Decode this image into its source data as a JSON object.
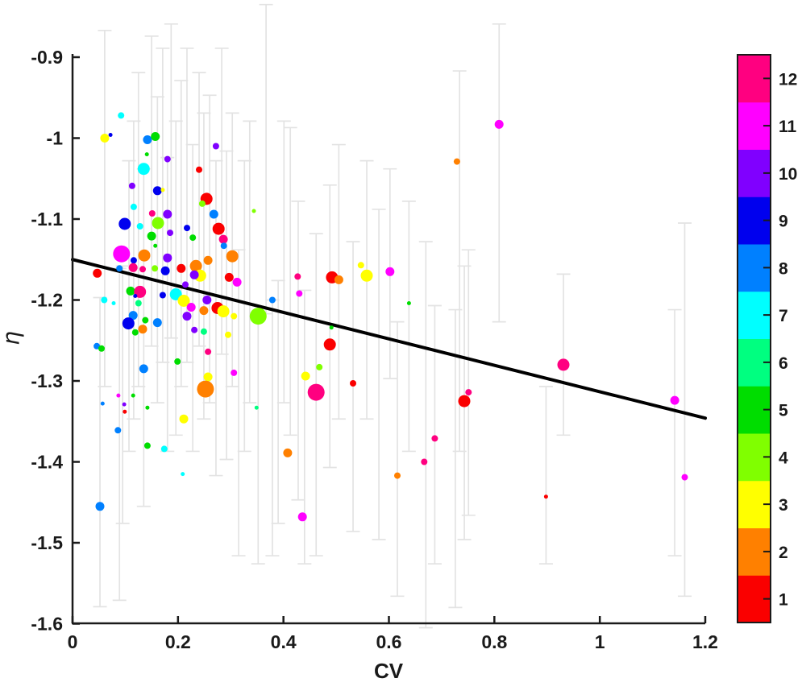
{
  "chart_data": {
    "type": "scatter",
    "title": "",
    "xlabel": "CV",
    "ylabel": "η",
    "xlim": [
      0,
      1.2
    ],
    "ylim": [
      -1.6,
      -0.9
    ],
    "x_ticks": [
      0,
      0.2,
      0.4,
      0.6,
      0.8,
      1,
      1.2
    ],
    "x_tick_labels": [
      "0",
      "0.2",
      "0.4",
      "0.6",
      "0.8",
      "1",
      "1.2"
    ],
    "y_ticks": [
      -0.9,
      -1,
      -1.1,
      -1.2,
      -1.3,
      -1.4,
      -1.5,
      -1.6
    ],
    "y_tick_labels": [
      "-0.9",
      "-1",
      "-1.1",
      "-1.2",
      "-1.3",
      "-1.4",
      "-1.5",
      "-1.6"
    ],
    "grid": false,
    "legend": null,
    "fit_line": {
      "x": [
        0,
        1.2
      ],
      "y": [
        -1.15,
        -1.346
      ],
      "color": "#000000",
      "width": 4
    },
    "colorbar": {
      "position": "right",
      "ticks": [
        1,
        2,
        3,
        4,
        5,
        6,
        7,
        8,
        9,
        10,
        11,
        12
      ],
      "colors": [
        "#FA0000",
        "#FF8000",
        "#FFFF00",
        "#80FF00",
        "#00DD00",
        "#00FF80",
        "#00FFFF",
        "#0080FF",
        "#0000EE",
        "#8000FF",
        "#FF00FF",
        "#FF0080"
      ]
    },
    "error_bar_color": "#E3E3E3",
    "points_format": "[cv, eta, color_index_1to12, radius_px]",
    "points": [
      [
        0.092,
        -0.972,
        7,
        4
      ],
      [
        0.061,
        -1.0,
        3,
        5.5
      ],
      [
        0.072,
        -0.996,
        9,
        2.5
      ],
      [
        0.142,
        -1.002,
        8,
        5.5
      ],
      [
        0.157,
        -0.998,
        5,
        5.5
      ],
      [
        0.272,
        -1.01,
        10,
        4
      ],
      [
        0.141,
        -1.02,
        5,
        2.5
      ],
      [
        0.18,
        -1.026,
        10,
        4
      ],
      [
        0.135,
        -1.038,
        7,
        7.5
      ],
      [
        0.24,
        -1.039,
        1,
        4
      ],
      [
        0.113,
        -1.059,
        10,
        4
      ],
      [
        0.161,
        -1.065,
        9,
        5.5
      ],
      [
        0.171,
        -1.064,
        3,
        2.5
      ],
      [
        0.254,
        -1.075,
        1,
        7.5
      ],
      [
        0.246,
        -1.081,
        4,
        4
      ],
      [
        0.116,
        -1.085,
        7,
        4
      ],
      [
        0.151,
        -1.093,
        12,
        4
      ],
      [
        0.18,
        -1.094,
        10,
        5.5
      ],
      [
        0.268,
        -1.094,
        8,
        5.5
      ],
      [
        0.099,
        -1.106,
        9,
        7.5
      ],
      [
        0.162,
        -1.105,
        4,
        7.5
      ],
      [
        0.217,
        -1.111,
        9,
        4
      ],
      [
        0.277,
        -1.112,
        1,
        7.5
      ],
      [
        0.185,
        -1.117,
        10,
        4
      ],
      [
        0.15,
        -1.121,
        5,
        5.5
      ],
      [
        0.228,
        -1.123,
        5,
        4
      ],
      [
        0.286,
        -1.125,
        12,
        5.5
      ],
      [
        0.344,
        -1.09,
        4,
        2.5
      ],
      [
        0.729,
        -1.029,
        2,
        4
      ],
      [
        0.809,
        -0.983,
        11,
        5.5
      ],
      [
        0.093,
        -1.143,
        11,
        10.5
      ],
      [
        0.136,
        -1.145,
        2,
        7.5
      ],
      [
        0.116,
        -1.151,
        9,
        4
      ],
      [
        0.089,
        -1.161,
        8,
        4
      ],
      [
        0.047,
        -1.167,
        1,
        5.5
      ],
      [
        0.115,
        -1.16,
        12,
        5.5
      ],
      [
        0.133,
        -1.162,
        12,
        4
      ],
      [
        0.156,
        -1.161,
        4,
        4
      ],
      [
        0.176,
        -1.164,
        9,
        5.5
      ],
      [
        0.206,
        -1.161,
        1,
        5.5
      ],
      [
        0.234,
        -1.158,
        2,
        7.5
      ],
      [
        0.242,
        -1.17,
        3,
        7.5
      ],
      [
        0.231,
        -1.169,
        10,
        5.5
      ],
      [
        0.257,
        -1.151,
        2,
        5.5
      ],
      [
        0.297,
        -1.172,
        1,
        5.5
      ],
      [
        0.312,
        -1.178,
        11,
        5.5
      ],
      [
        0.11,
        -1.189,
        5,
        5.5
      ],
      [
        0.128,
        -1.19,
        12,
        7.5
      ],
      [
        0.119,
        -1.195,
        9,
        2.5
      ],
      [
        0.125,
        -1.204,
        6,
        4
      ],
      [
        0.06,
        -1.2,
        7,
        4
      ],
      [
        0.078,
        -1.204,
        7,
        2.5
      ],
      [
        0.171,
        -1.194,
        9,
        4
      ],
      [
        0.196,
        -1.193,
        7,
        7.5
      ],
      [
        0.211,
        -1.201,
        3,
        7.5
      ],
      [
        0.255,
        -1.2,
        10,
        5.5
      ],
      [
        0.225,
        -1.209,
        11,
        5.5
      ],
      [
        0.275,
        -1.21,
        1,
        7.5
      ],
      [
        0.286,
        -1.214,
        3,
        7.5
      ],
      [
        0.249,
        -1.213,
        2,
        5.5
      ],
      [
        0.306,
        -1.22,
        3,
        4
      ],
      [
        0.115,
        -1.219,
        8,
        5.5
      ],
      [
        0.217,
        -1.22,
        10,
        5.5
      ],
      [
        0.138,
        -1.225,
        5,
        4
      ],
      [
        0.106,
        -1.229,
        9,
        7.5
      ],
      [
        0.161,
        -1.228,
        8,
        5.5
      ],
      [
        0.231,
        -1.237,
        10,
        4
      ],
      [
        0.249,
        -1.239,
        6,
        4
      ],
      [
        0.133,
        -1.236,
        2,
        5.5
      ],
      [
        0.119,
        -1.24,
        5,
        4
      ],
      [
        0.295,
        -1.243,
        3,
        4
      ],
      [
        0.352,
        -1.22,
        4,
        10.5
      ],
      [
        0.491,
        -1.234,
        5,
        2.5
      ],
      [
        0.488,
        -1.255,
        1,
        7.5
      ],
      [
        0.468,
        -1.283,
        4,
        4
      ],
      [
        0.442,
        -1.294,
        3,
        5.5
      ],
      [
        0.462,
        -1.314,
        12,
        10.5
      ],
      [
        0.532,
        -1.303,
        1,
        4
      ],
      [
        0.349,
        -1.333,
        6,
        2.5
      ],
      [
        0.046,
        -1.257,
        8,
        4
      ],
      [
        0.055,
        -1.26,
        5,
        4
      ],
      [
        0.257,
        -1.264,
        12,
        4
      ],
      [
        0.199,
        -1.276,
        5,
        4
      ],
      [
        0.135,
        -1.285,
        8,
        5.5
      ],
      [
        0.306,
        -1.29,
        11,
        4
      ],
      [
        0.257,
        -1.295,
        3,
        5.5
      ],
      [
        0.252,
        -1.31,
        2,
        10.5
      ],
      [
        0.087,
        -1.318,
        11,
        2.5
      ],
      [
        0.115,
        -1.318,
        5,
        2.5
      ],
      [
        0.057,
        -1.328,
        8,
        2.5
      ],
      [
        0.098,
        -1.329,
        10,
        2.5
      ],
      [
        0.099,
        -1.338,
        1,
        2.5
      ],
      [
        0.142,
        -1.333,
        5,
        2.5
      ],
      [
        0.211,
        -1.347,
        3,
        5.5
      ],
      [
        0.086,
        -1.361,
        8,
        4
      ],
      [
        0.142,
        -1.38,
        5,
        4
      ],
      [
        0.174,
        -1.384,
        7,
        4
      ],
      [
        0.209,
        -1.415,
        7,
        2.5
      ],
      [
        0.408,
        -1.389,
        2,
        5.5
      ],
      [
        0.436,
        -1.468,
        11,
        5.5
      ],
      [
        0.687,
        -1.371,
        12,
        4
      ],
      [
        0.667,
        -1.4,
        12,
        4
      ],
      [
        0.616,
        -1.417,
        2,
        4
      ],
      [
        0.743,
        -1.325,
        1,
        7.5
      ],
      [
        0.751,
        -1.314,
        12,
        4
      ],
      [
        0.931,
        -1.28,
        12,
        7.5
      ],
      [
        1.142,
        -1.324,
        11,
        5.5
      ],
      [
        1.161,
        -1.419,
        11,
        4
      ],
      [
        0.898,
        -1.443,
        1,
        2.5
      ],
      [
        0.052,
        -1.455,
        8,
        5.5
      ],
      [
        0.427,
        -1.171,
        12,
        4
      ],
      [
        0.492,
        -1.172,
        1,
        7.5
      ],
      [
        0.505,
        -1.175,
        2,
        5.5
      ],
      [
        0.547,
        -1.157,
        3,
        4
      ],
      [
        0.558,
        -1.17,
        3,
        7.5
      ],
      [
        0.602,
        -1.165,
        11,
        5.5
      ],
      [
        0.43,
        -1.192,
        11,
        4
      ],
      [
        0.379,
        -1.2,
        8,
        4
      ],
      [
        0.638,
        -1.204,
        5,
        2.5
      ],
      [
        0.128,
        -1.109,
        7,
        4
      ],
      [
        0.303,
        -1.146,
        2,
        7.5
      ],
      [
        0.287,
        -1.133,
        8,
        4
      ],
      [
        0.18,
        -1.148,
        10,
        5.5
      ],
      [
        0.15,
        -1.124,
        5,
        2.5
      ],
      [
        0.157,
        -1.133,
        5,
        2.5
      ],
      [
        0.214,
        -1.181,
        10,
        4
      ]
    ],
    "error_bars_format": "[cv, eta_low, eta_high]",
    "error_bars": [
      [
        0.052,
        -1.579,
        -1.197
      ],
      [
        0.061,
        -1.307,
        -0.867
      ],
      [
        0.089,
        -1.571,
        -1.161
      ],
      [
        0.095,
        -1.476,
        -1.158
      ],
      [
        0.107,
        -1.387,
        -1.028
      ],
      [
        0.116,
        -1.347,
        -0.979
      ],
      [
        0.125,
        -1.307,
        -0.919
      ],
      [
        0.135,
        -1.455,
        -1.038
      ],
      [
        0.15,
        -1.257,
        -0.874
      ],
      [
        0.161,
        -1.327,
        -0.949
      ],
      [
        0.171,
        -1.277,
        -0.889
      ],
      [
        0.18,
        -1.387,
        -1.024
      ],
      [
        0.187,
        -1.247,
        -0.859
      ],
      [
        0.196,
        -1.367,
        -0.979
      ],
      [
        0.206,
        -1.307,
        -0.929
      ],
      [
        0.217,
        -1.277,
        -0.889
      ],
      [
        0.228,
        -1.387,
        -1.008
      ],
      [
        0.24,
        -1.257,
        -0.919
      ],
      [
        0.249,
        -1.347,
        -0.969
      ],
      [
        0.26,
        -1.327,
        -0.947
      ],
      [
        0.272,
        -1.417,
        -1.028
      ],
      [
        0.283,
        -1.267,
        -0.889
      ],
      [
        0.292,
        -1.397,
        -1.016
      ],
      [
        0.303,
        -1.307,
        -0.969
      ],
      [
        0.315,
        -1.516,
        -1.138
      ],
      [
        0.326,
        -1.387,
        -1.028
      ],
      [
        0.336,
        -1.327,
        -0.979
      ],
      [
        0.352,
        -1.526,
        -1.22
      ],
      [
        0.367,
        -1.217,
        -0.835
      ],
      [
        0.379,
        -1.516,
        -1.2
      ],
      [
        0.39,
        -1.476,
        -1.176
      ],
      [
        0.401,
        -1.327,
        -0.979
      ],
      [
        0.413,
        -1.367,
        -0.987
      ],
      [
        0.428,
        -1.447,
        -1.078
      ],
      [
        0.44,
        -1.526,
        -1.188
      ],
      [
        0.462,
        -1.516,
        -1.118
      ],
      [
        0.488,
        -1.407,
        -1.058
      ],
      [
        0.505,
        -1.347,
        -1.008
      ],
      [
        0.532,
        -1.486,
        -1.128
      ],
      [
        0.558,
        -1.347,
        -1.028
      ],
      [
        0.581,
        -1.496,
        -1.088
      ],
      [
        0.602,
        -1.297,
        -1.038
      ],
      [
        0.616,
        -1.566,
        -1.227
      ],
      [
        0.638,
        -1.387,
        -1.078
      ],
      [
        0.67,
        -1.605,
        -1.128
      ],
      [
        0.687,
        -1.526,
        -1.207
      ],
      [
        0.726,
        -1.58,
        -1.212
      ],
      [
        0.734,
        -1.387,
        -0.917
      ],
      [
        0.743,
        -1.496,
        -1.158
      ],
      [
        0.751,
        -1.466,
        -1.138
      ],
      [
        0.809,
        -1.227,
        -0.859
      ],
      [
        0.898,
        -1.526,
        -1.307
      ],
      [
        0.931,
        -1.367,
        -1.168
      ],
      [
        1.142,
        -1.516,
        -1.212
      ],
      [
        1.161,
        -1.566,
        -1.105
      ]
    ]
  }
}
